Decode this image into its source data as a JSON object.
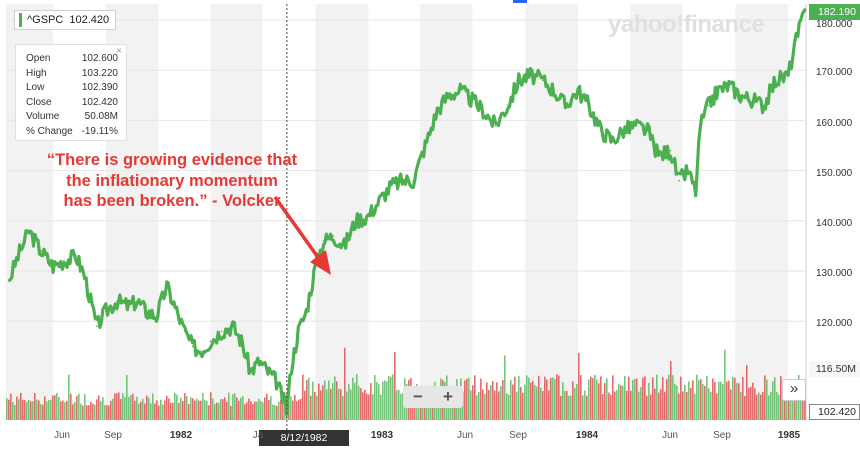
{
  "ticker": {
    "symbol": "^GSPC",
    "value": "102.420"
  },
  "ohlc": [
    {
      "label": "Open",
      "value": "102.600"
    },
    {
      "label": "High",
      "value": "103.220"
    },
    {
      "label": "Low",
      "value": "102.390"
    },
    {
      "label": "Close",
      "value": "102.420"
    },
    {
      "label": "Volume",
      "value": "50.08M"
    },
    {
      "label": "% Change",
      "value": "-19.11%"
    }
  ],
  "annotation": {
    "line1": "“There is growing evidence that",
    "line2": "the inflationary momentum",
    "line3": "has been broken.” - Volcker"
  },
  "logo": "yahoo!finance",
  "price_flag": "182.190",
  "volume_flag": "116.50M",
  "close_flag": "102.420",
  "date_flag": "8/12/1982",
  "controls": {
    "zoom_out": "−",
    "zoom_in": "+",
    "expand": "»"
  },
  "colors": {
    "line": "#4caf50",
    "up_volume": "#5dbb63",
    "down_volume": "#e05252",
    "annotation": "#e53935",
    "band": "#f2f2f2"
  },
  "chart_data": {
    "type": "line",
    "series_name": "^GSPC",
    "x": [
      "1981-04-15",
      "1981-05-01",
      "1981-05-20",
      "1981-06-10",
      "1981-07-01",
      "1981-07-20",
      "1981-08-10",
      "1981-08-25",
      "1981-09-15",
      "1981-10-01",
      "1981-10-20",
      "1981-11-10",
      "1981-11-25",
      "1981-12-10",
      "1981-12-28",
      "1982-01-15",
      "1982-02-01",
      "1982-02-15",
      "1982-03-01",
      "1982-03-15",
      "1982-04-01",
      "1982-04-20",
      "1982-05-10",
      "1982-05-25",
      "1982-06-10",
      "1982-06-25",
      "1982-07-10",
      "1982-07-25",
      "1982-08-12",
      "1982-08-20",
      "1982-09-01",
      "1982-09-15",
      "1982-10-01",
      "1982-10-15",
      "1982-11-01",
      "1982-11-20",
      "1982-12-10",
      "1983-01-01",
      "1983-01-20",
      "1983-02-10",
      "1983-03-01",
      "1983-03-20",
      "1983-04-10",
      "1983-05-01",
      "1983-05-20",
      "1983-06-10",
      "1983-07-01",
      "1983-07-20",
      "1983-08-10",
      "1983-09-01",
      "1983-09-20",
      "1983-10-10",
      "1983-11-01",
      "1983-11-20",
      "1983-12-10",
      "1984-01-01",
      "1984-01-20",
      "1984-02-10",
      "1984-03-01",
      "1984-03-20",
      "1984-04-10",
      "1984-05-01",
      "1984-05-20",
      "1984-06-10",
      "1984-06-25",
      "1984-07-10",
      "1984-07-24",
      "1984-08-01",
      "1984-08-15",
      "1984-09-01",
      "1984-09-20",
      "1984-10-10",
      "1984-11-01",
      "1984-11-20",
      "1984-12-10",
      "1985-01-01",
      "1985-01-15",
      "1985-01-31"
    ],
    "values": [
      128,
      133,
      138,
      134,
      131,
      132,
      133,
      129,
      119,
      122,
      124,
      123,
      124,
      122,
      121,
      127,
      122,
      118,
      115,
      114,
      116,
      118,
      119,
      116,
      110,
      112,
      110,
      108,
      102.4,
      111,
      118,
      122,
      131,
      136,
      137,
      135,
      140,
      141,
      144,
      147,
      148,
      148,
      155,
      162,
      165,
      166,
      164,
      162,
      159,
      163,
      168,
      169,
      168,
      166,
      163,
      166,
      163,
      158,
      156,
      158,
      159,
      158,
      153,
      154,
      148,
      150,
      146,
      159,
      163,
      166,
      167,
      165,
      164,
      163,
      168,
      169,
      176,
      182.19
    ],
    "x_ticks": [
      "Jun",
      "Sep",
      "1982",
      "Ja",
      "1983",
      "Jun",
      "Sep",
      "1984",
      "Jun",
      "Sep",
      "1985"
    ],
    "y_ticks": [
      "180.000",
      "170.000",
      "160.000",
      "150.000",
      "140.000",
      "130.000",
      "120.000"
    ],
    "ylim": [
      100,
      184
    ],
    "grid": true,
    "volume_note": "volume bars shown at bottom, green up / red down"
  }
}
